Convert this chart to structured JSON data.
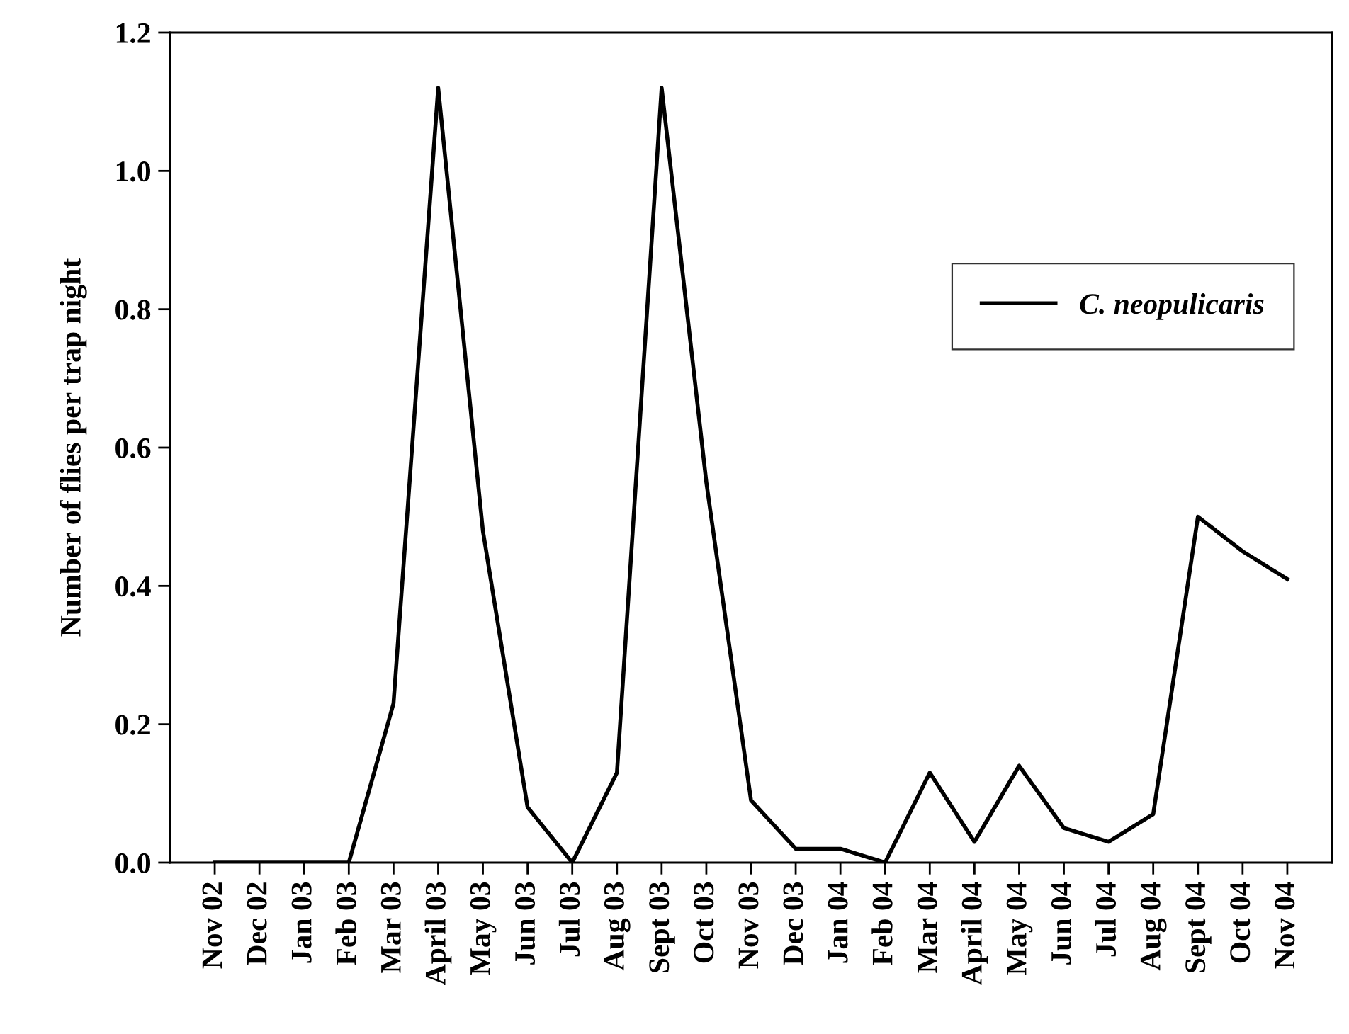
{
  "chart_data": {
    "type": "line",
    "ylabel": "Number of flies per trap night",
    "categories": [
      "Nov 02",
      "Dec 02",
      "Jan 03",
      "Feb 03",
      "Mar 03",
      "April 03",
      "May 03",
      "Jun 03",
      "Jul 03",
      "Aug 03",
      "Sept 03",
      "Oct 03",
      "Nov 03",
      "Dec 03",
      "Jan 04",
      "Feb 04",
      "Mar 04",
      "April 04",
      "May 04",
      "Jun 04",
      "Jul 04",
      "Aug 04",
      "Sept 04",
      "Oct 04",
      "Nov 04"
    ],
    "series": [
      {
        "name": "C. neopulicaris",
        "color": "#000000",
        "values": [
          0,
          0,
          0,
          0,
          0.23,
          1.12,
          0.48,
          0.08,
          0,
          0.13,
          1.12,
          0.55,
          0.09,
          0.02,
          0.02,
          0,
          0.13,
          0.03,
          0.14,
          0.05,
          0.03,
          0.07,
          0.5,
          0.45,
          0.41
        ]
      }
    ],
    "ylim": [
      0,
      1.2
    ],
    "yticks": [
      {
        "value": 0,
        "label": "0.0"
      },
      {
        "value": 0.2,
        "label": "0.2"
      },
      {
        "value": 0.4,
        "label": "0.4"
      },
      {
        "value": 0.6,
        "label": "0.6"
      },
      {
        "value": 0.8,
        "label": "0.8"
      },
      {
        "value": 1.0,
        "label": "1.0"
      },
      {
        "value": 1.2,
        "label": "1.2"
      }
    ],
    "grid": false,
    "legend": "right",
    "marker": "none",
    "line_style": "solid"
  }
}
